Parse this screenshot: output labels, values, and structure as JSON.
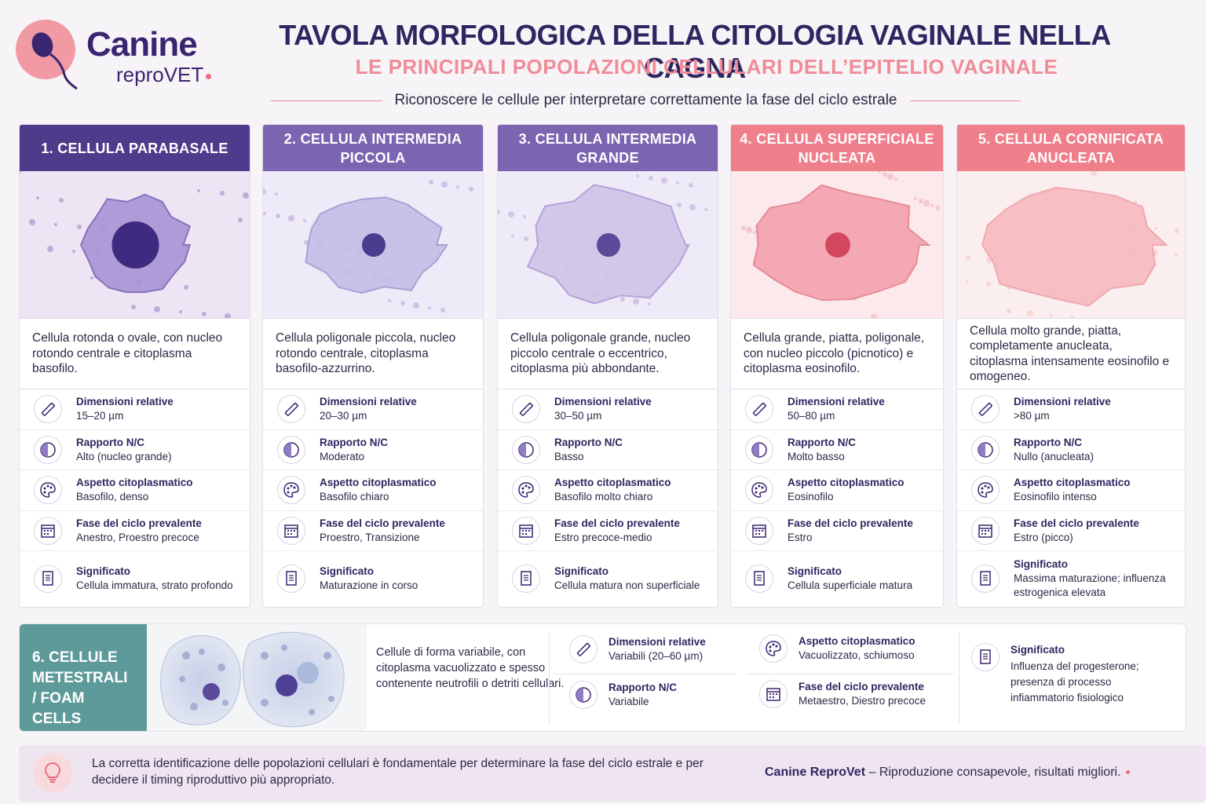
{
  "logo": {
    "word": "Canine",
    "sub": "reproVET"
  },
  "header": {
    "title": "TAVOLA MORFOLOGICA DELLA CITOLOGIA VAGINALE NELLA CAGNA",
    "subtitle": "LE PRINCIPALI POPOLAZIONI CELLULARI DELL’EPITELIO VAGINALE",
    "tagline": "Riconoscere le cellule per interpretare correttamente la fase del ciclo estrale"
  },
  "labels": {
    "dim": "Dimensioni relative",
    "nc": "Rapporto N/C",
    "cyto": "Aspetto citoplasmatico",
    "phase": "Fase del ciclo prevalente",
    "meaning": "Significato"
  },
  "cards": [
    {
      "title": "1. CELLULA PARABASALE",
      "color": "#4f3b8c",
      "desc": "Cellula rotonda o ovale, con nucleo rotondo centrale e citoplasma basofilo.",
      "dim": "15–20 µm",
      "nc": "Alto (nucleo grande)",
      "cyto": "Basofilo, denso",
      "phase": "Anestro, Proestro precoce",
      "meaning": "Cellula immatura, strato profondo"
    },
    {
      "title": "2. CELLULA INTERMEDIA PICCOLA",
      "color": "#7b64b0",
      "desc": "Cellula poligonale piccola, nucleo rotondo centrale, citoplasma basofilo-azzurrino.",
      "dim": "20–30 µm",
      "nc": "Moderato",
      "cyto": "Basofilo chiaro",
      "phase": "Proestro, Transizione",
      "meaning": "Maturazione in corso"
    },
    {
      "title": "3. CELLULA INTERMEDIA GRANDE",
      "color": "#7b64b0",
      "desc": "Cellula poligonale grande, nucleo piccolo centrale o eccentrico, citoplasma più abbondante.",
      "dim": "30–50 µm",
      "nc": "Basso",
      "cyto": "Basofilo molto chiaro",
      "phase": "Estro precoce-medio",
      "meaning": "Cellula matura non superficiale"
    },
    {
      "title": "4. CELLULA SUPERFICIALE NUCLEATA",
      "color": "#ee7f8b",
      "desc": "Cellula grande, piatta, poligonale, con nucleo piccolo (picnotico) e citoplasma eosinofilo.",
      "dim": "50–80 µm",
      "nc": "Molto basso",
      "cyto": "Eosinofilo",
      "phase": "Estro",
      "meaning": "Cellula superficiale matura"
    },
    {
      "title": "5. CELLULA CORNIFICATA ANUCLEATA",
      "color": "#ee7f8b",
      "desc": "Cellula molto grande, piatta, completamente anucleata, citoplasma intensamente eosinofilo e omogeneo.",
      "dim": ">80 µm",
      "nc": "Nullo (anucleata)",
      "cyto": "Eosinofilo intenso",
      "phase": "Estro (picco)",
      "meaning": "Massima maturazione; influenza estrogenica elevata"
    }
  ],
  "foam": {
    "title": "6. CELLULE METESTRALI / FOAM CELLS",
    "color": "#5e9a9a",
    "desc": "Cellule di forma variabile, con citoplasma vacuolizzato e spesso contenente neutrofili o detriti cellulari.",
    "dim": "Variabili (20–60 µm)",
    "nc": "Variabile",
    "cyto": "Vacuolizzato, schiumoso",
    "phase": "Metaestro, Diestro precoce",
    "meaning": "Influenza del progesterone; presenza di processo infiammatorio fisiologico"
  },
  "footer": {
    "text": "La corretta identificazione delle popolazioni cellulari è fondamentale per determinare la fase del ciclo estrale e per decidere il timing riproduttivo più appropriato.",
    "brand": "Canine ReproVet",
    "slogan": " – Riproduzione consapevole, risultati migliori."
  }
}
